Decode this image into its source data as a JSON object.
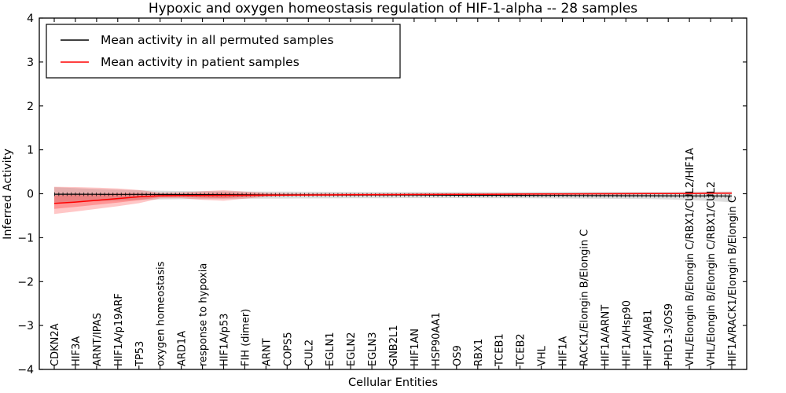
{
  "chart_data": {
    "type": "line",
    "title": "Hypoxic and oxygen homeostasis regulation of HIF-1-alpha -- 28 samples",
    "xlabel": "Cellular Entities",
    "ylabel": "Inferred Activity",
    "ylim": [
      -4,
      4
    ],
    "yticks": [
      -4,
      -3,
      -2,
      -1,
      0,
      1,
      2,
      3,
      4
    ],
    "grid": false,
    "legend": {
      "position": "upper left",
      "entries": [
        {
          "label": "Mean activity in all permuted samples",
          "color": "#000000"
        },
        {
          "label": "Mean activity in patient samples",
          "color": "#ff0000"
        }
      ]
    },
    "categories": [
      "CDKN2A",
      "HIF3A",
      "ARNT/IPAS",
      "HIF1A/p19ARF",
      "TP53",
      "oxygen homeostasis",
      "ARD1A",
      "response to hypoxia",
      "HIF1A/p53",
      "FIH (dimer)",
      "ARNT",
      "COPS5",
      "CUL2",
      "EGLN1",
      "EGLN2",
      "EGLN3",
      "GNB2L1",
      "HIF1AN",
      "HSP90AA1",
      "OS9",
      "RBX1",
      "TCEB1",
      "TCEB2",
      "VHL",
      "HIF1A",
      "RACK1/Elongin B/Elongin C",
      "HIF1A/ARNT",
      "HIF1A/Hsp90",
      "HIF1A/JAB1",
      "PHD1-3/OS9",
      "VHL/Elongin B/Elongin C/RBX1/CUL2/HIF1A",
      "VHL/Elongin B/Elongin C/RBX1/CUL2",
      "HIF1A/RACK1/Elongin B/Elongin C"
    ],
    "series": [
      {
        "name": "Mean activity in all permuted samples",
        "color": "#000000",
        "values": [
          -0.01,
          -0.011,
          -0.013,
          -0.014,
          -0.015,
          -0.016,
          -0.018,
          -0.019,
          -0.02,
          -0.021,
          -0.023,
          -0.024,
          -0.025,
          -0.026,
          -0.028,
          -0.029,
          -0.03,
          -0.031,
          -0.033,
          -0.034,
          -0.035,
          -0.036,
          -0.038,
          -0.039,
          -0.04,
          -0.041,
          -0.043,
          -0.044,
          -0.045,
          -0.046,
          -0.048,
          -0.049,
          -0.05
        ]
      },
      {
        "name": "Mean activity in patient samples",
        "color": "#ff0000",
        "values": [
          -0.22,
          -0.19,
          -0.15,
          -0.11,
          -0.07,
          -0.045,
          -0.04,
          -0.04,
          -0.038,
          -0.035,
          -0.032,
          -0.03,
          -0.028,
          -0.026,
          -0.024,
          -0.022,
          -0.02,
          -0.018,
          -0.016,
          -0.014,
          -0.012,
          -0.01,
          -0.008,
          -0.006,
          -0.004,
          -0.002,
          0.0,
          0.002,
          0.004,
          0.006,
          0.008,
          0.012,
          0.015
        ]
      }
    ],
    "bands": [
      {
        "name": "permuted-range",
        "color": "#000000",
        "opacity": 0.13,
        "upper": [
          0.15,
          0.13,
          0.11,
          0.095,
          0.08,
          0.07,
          0.062,
          0.058,
          0.055,
          0.052,
          0.05,
          0.048,
          0.046,
          0.044,
          0.043,
          0.042,
          0.041,
          0.04,
          0.04,
          0.04,
          0.04,
          0.041,
          0.042,
          0.043,
          0.044,
          0.045,
          0.045,
          0.044,
          0.043,
          0.045,
          0.048,
          0.05,
          0.052
        ],
        "lower": [
          -0.2,
          -0.185,
          -0.17,
          -0.155,
          -0.142,
          -0.132,
          -0.125,
          -0.12,
          -0.117,
          -0.114,
          -0.111,
          -0.109,
          -0.107,
          -0.105,
          -0.104,
          -0.103,
          -0.102,
          -0.101,
          -0.1,
          -0.1,
          -0.101,
          -0.102,
          -0.104,
          -0.106,
          -0.109,
          -0.112,
          -0.115,
          -0.118,
          -0.122,
          -0.13,
          -0.145,
          -0.165,
          -0.195
        ]
      },
      {
        "name": "patient-range-outer",
        "color": "#ff0000",
        "opacity": 0.22,
        "upper": [
          0.16,
          0.152,
          0.14,
          0.122,
          0.085,
          0.022,
          0.03,
          0.058,
          0.08,
          0.05,
          0.02,
          0.012,
          0.01,
          0.01,
          0.01,
          0.01,
          0.01,
          0.01,
          0.01,
          0.01,
          0.01,
          0.01,
          0.01,
          0.01,
          0.01,
          0.01,
          0.012,
          0.012,
          0.014,
          0.016,
          0.018,
          0.024,
          0.03
        ],
        "lower": [
          -0.46,
          -0.405,
          -0.345,
          -0.285,
          -0.215,
          -0.105,
          -0.1,
          -0.14,
          -0.16,
          -0.112,
          -0.07,
          -0.052,
          -0.048,
          -0.046,
          -0.044,
          -0.042,
          -0.04,
          -0.038,
          -0.036,
          -0.034,
          -0.032,
          -0.03,
          -0.028,
          -0.026,
          -0.024,
          -0.022,
          -0.02,
          -0.018,
          -0.016,
          -0.014,
          -0.012,
          -0.008,
          -0.004
        ]
      },
      {
        "name": "patient-range-inner",
        "color": "#ff0000",
        "opacity": 0.25,
        "upper": [
          -0.03,
          -0.02,
          -0.005,
          0.006,
          0.008,
          -0.012,
          -0.005,
          0.01,
          0.021,
          0.008,
          -0.006,
          -0.009,
          -0.009,
          -0.008,
          -0.007,
          -0.006,
          -0.005,
          -0.004,
          -0.003,
          -0.002,
          -0.001,
          0.0,
          0.001,
          0.002,
          0.003,
          0.004,
          0.006,
          0.007,
          0.009,
          0.011,
          0.013,
          0.018,
          0.023
        ],
        "lower": [
          -0.345,
          -0.3,
          -0.25,
          -0.2,
          -0.145,
          -0.078,
          -0.072,
          -0.092,
          -0.1,
          -0.075,
          -0.052,
          -0.044,
          -0.042,
          -0.04,
          -0.038,
          -0.036,
          -0.034,
          -0.032,
          -0.03,
          -0.028,
          -0.026,
          -0.024,
          -0.022,
          -0.02,
          -0.018,
          -0.016,
          -0.014,
          -0.012,
          -0.01,
          -0.008,
          -0.006,
          -0.002,
          0.002
        ]
      }
    ]
  }
}
